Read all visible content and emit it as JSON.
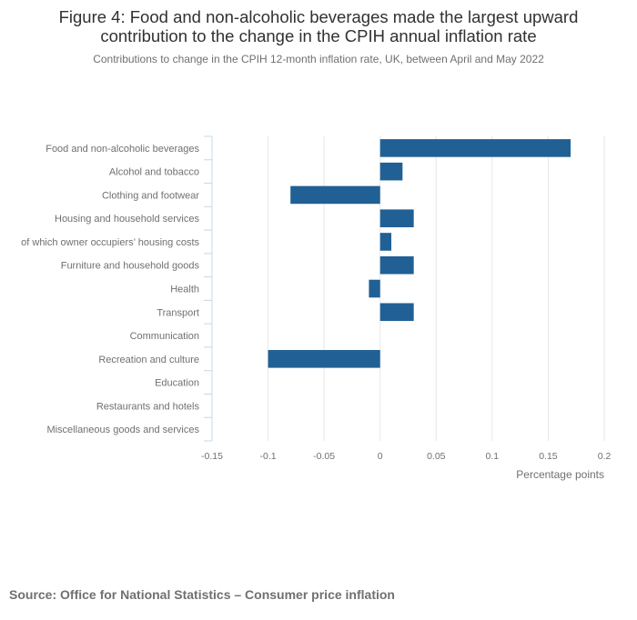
{
  "header": {
    "title_line1": "Figure 4: Food and non-alcoholic beverages made the largest upward",
    "title_line2": "contribution to the change in the CPIH annual inflation rate",
    "subtitle": "Contributions to change in the CPIH 12-month inflation rate, UK, between April and May 2022"
  },
  "chart_data": {
    "type": "bar",
    "orientation": "horizontal",
    "categories": [
      "Food and non-alcoholic beverages",
      "Alcohol and tobacco",
      "Clothing and footwear",
      "Housing and household services",
      "of which owner occupiers’ housing costs",
      "Furniture and household goods",
      "Health",
      "Transport",
      "Communication",
      "Recreation and culture",
      "Education",
      "Restaurants and hotels",
      "Miscellaneous goods and services"
    ],
    "values": [
      0.17,
      0.02,
      -0.08,
      0.03,
      0.01,
      0.03,
      -0.01,
      0.03,
      0,
      -0.1,
      0,
      0,
      0
    ],
    "xlim": [
      -0.15,
      0.2
    ],
    "xticks": [
      -0.15,
      -0.1,
      -0.05,
      0,
      0.05,
      0.1,
      0.15,
      0.2
    ],
    "xtick_labels": [
      "-0.15",
      "-0.1",
      "-0.05",
      "0",
      "0.05",
      "0.1",
      "0.15",
      "0.2"
    ],
    "xlabel": "Percentage points",
    "ylabel": "",
    "grid": true,
    "bar_color": "#206095",
    "grid_color": "#e6e6e6",
    "axis_color": "#c5d8e8"
  },
  "source": "Source: Office for National Statistics – Consumer price inflation"
}
